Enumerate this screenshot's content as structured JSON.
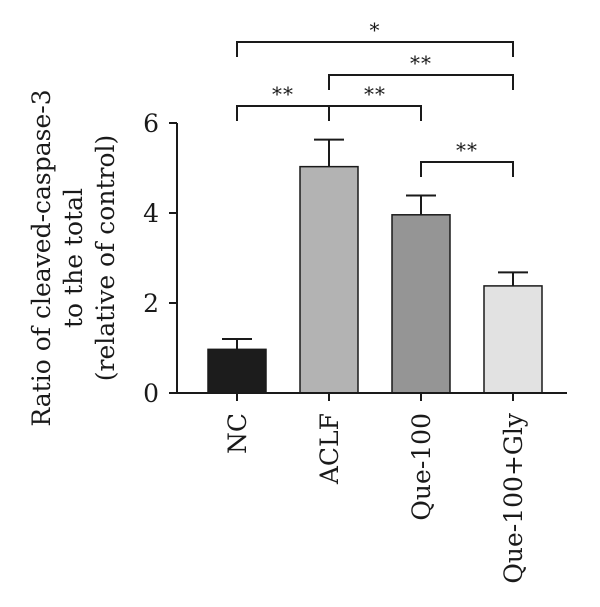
{
  "chart_data": {
    "type": "bar",
    "title": "",
    "ylabel_lines": [
      "Ratio of cleaved-caspase-3",
      "to the total",
      "(relative of control)"
    ],
    "xlabel": "",
    "categories": [
      "NC",
      "ACLF",
      "Que-100",
      "Que-100+Gly"
    ],
    "values": [
      0.97,
      5.03,
      3.96,
      2.38
    ],
    "errors": [
      0.23,
      0.6,
      0.43,
      0.3
    ],
    "bar_colors": [
      "#1c1c1c",
      "#b3b3b3",
      "#959595",
      "#e2e2e2"
    ],
    "ylim": [
      0,
      6
    ],
    "yticks": [
      0,
      2,
      4,
      6
    ],
    "grid": false,
    "significance": [
      {
        "from": 0,
        "to": 3,
        "label": "*",
        "level": 3
      },
      {
        "from": 1,
        "to": 3,
        "label": "**",
        "level": 2
      },
      {
        "from": 0,
        "to": 1,
        "label": "**",
        "level": 1
      },
      {
        "from": 1,
        "to": 2,
        "label": "**",
        "level": 1
      },
      {
        "from": 2,
        "to": 3,
        "label": "**",
        "level": 0
      }
    ]
  }
}
